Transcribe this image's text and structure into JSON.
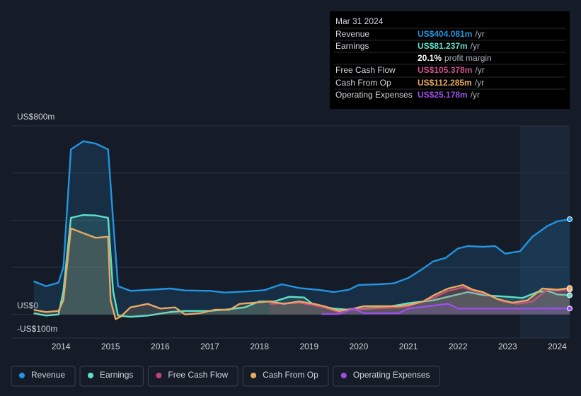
{
  "chart_data": {
    "type": "line",
    "ylim": [
      -100,
      800
    ],
    "yticks": [
      {
        "value": 800,
        "label": "US$800m"
      },
      {
        "value": 0,
        "label": "US$0"
      },
      {
        "value": -100,
        "label": "-US$100m"
      }
    ],
    "ygrid": [
      -100,
      0,
      200,
      400,
      600,
      800
    ],
    "xlim": [
      2013.0,
      2024.25
    ],
    "xticks": [
      2014,
      2015,
      2016,
      2017,
      2018,
      2019,
      2020,
      2021,
      2022,
      2023,
      2024
    ],
    "series": [
      {
        "name": "Revenue",
        "color": "#2394df",
        "x": [
          2013.45,
          2013.7,
          2013.95,
          2014.05,
          2014.2,
          2014.45,
          2014.7,
          2014.95,
          2015.05,
          2015.15,
          2015.4,
          2015.75,
          2016.2,
          2016.5,
          2017.0,
          2017.3,
          2017.7,
          2018.1,
          2018.45,
          2018.8,
          2019.2,
          2019.5,
          2019.8,
          2020.0,
          2020.4,
          2020.7,
          2021.0,
          2021.3,
          2021.5,
          2021.75,
          2022.0,
          2022.2,
          2022.5,
          2022.75,
          2022.95,
          2023.25,
          2023.5,
          2023.8,
          2024.0,
          2024.25
        ],
        "values": [
          141,
          120,
          135,
          200,
          700,
          735,
          725,
          700,
          400,
          120,
          100,
          104,
          110,
          102,
          100,
          93,
          97,
          103,
          128,
          112,
          104,
          95,
          105,
          125,
          128,
          132,
          155,
          195,
          225,
          240,
          280,
          290,
          287,
          290,
          258,
          268,
          330,
          375,
          395,
          404.081
        ]
      },
      {
        "name": "Earnings",
        "color": "#5ee0c7",
        "x": [
          2013.45,
          2013.7,
          2013.95,
          2014.05,
          2014.2,
          2014.45,
          2014.7,
          2014.95,
          2015.05,
          2015.15,
          2015.4,
          2015.75,
          2016.2,
          2016.5,
          2017.0,
          2017.3,
          2017.7,
          2018.0,
          2018.3,
          2018.6,
          2018.9,
          2019.1,
          2019.5,
          2019.8,
          2020.1,
          2020.5,
          2020.8,
          2021.0,
          2021.5,
          2021.9,
          2022.2,
          2022.5,
          2022.8,
          2023.0,
          2023.3,
          2023.6,
          2023.8,
          2024.0,
          2024.25
        ],
        "values": [
          5,
          -5,
          0,
          100,
          410,
          422,
          420,
          410,
          100,
          -5,
          -10,
          -5,
          10,
          15,
          15,
          20,
          30,
          55,
          55,
          75,
          72,
          40,
          25,
          20,
          25,
          30,
          40,
          48,
          60,
          80,
          95,
          82,
          78,
          75,
          70,
          95,
          100,
          85,
          81.237
        ]
      },
      {
        "name": "Free Cash Flow",
        "color": "#c0427a",
        "x": [
          2018.2,
          2018.8,
          2019.3,
          2019.6,
          2019.9,
          2020.3,
          2020.8,
          2021.0,
          2021.5,
          2021.8,
          2022.1,
          2022.3,
          2022.6,
          2022.9,
          2023.2,
          2023.5,
          2023.8,
          2024.0,
          2024.25
        ],
        "values": [
          45,
          50,
          30,
          10,
          20,
          25,
          30,
          35,
          70,
          100,
          115,
          100,
          85,
          55,
          45,
          55,
          105,
          100,
          105.378
        ]
      },
      {
        "name": "Cash From Op",
        "color": "#e8a964",
        "x": [
          2013.45,
          2013.7,
          2013.95,
          2014.05,
          2014.2,
          2014.45,
          2014.7,
          2014.95,
          2015.0,
          2015.1,
          2015.2,
          2015.4,
          2015.75,
          2016.0,
          2016.3,
          2016.5,
          2016.8,
          2017.1,
          2017.4,
          2017.6,
          2017.9,
          2018.2,
          2018.5,
          2018.8,
          2019.1,
          2019.3,
          2019.6,
          2019.9,
          2020.1,
          2020.5,
          2020.8,
          2021.0,
          2021.3,
          2021.5,
          2021.8,
          2022.1,
          2022.3,
          2022.5,
          2022.8,
          2023.1,
          2023.4,
          2023.7,
          2024.0,
          2024.25
        ],
        "values": [
          20,
          10,
          15,
          60,
          365,
          345,
          325,
          330,
          60,
          -20,
          -10,
          30,
          45,
          25,
          30,
          0,
          5,
          20,
          20,
          45,
          50,
          55,
          45,
          55,
          45,
          35,
          15,
          25,
          35,
          35,
          35,
          40,
          55,
          80,
          110,
          125,
          105,
          95,
          65,
          50,
          60,
          110,
          105,
          112.285
        ]
      },
      {
        "name": "Operating Expenses",
        "color": "#9b4fe8",
        "x": [
          2019.25,
          2019.6,
          2019.9,
          2020.1,
          2020.5,
          2020.8,
          2021.0,
          2021.4,
          2021.8,
          2022.0,
          2022.5,
          2023.0,
          2023.5,
          2024.0,
          2024.25
        ],
        "values": [
          2,
          2,
          25,
          5,
          5,
          5,
          25,
          35,
          45,
          25,
          25,
          25,
          25,
          26,
          25.178
        ]
      }
    ]
  },
  "tooltip": {
    "date": "Mar 31 2024",
    "rows": [
      {
        "label": "Revenue",
        "value": "US$404.081m",
        "unit": "/yr",
        "color": "#2394df"
      },
      {
        "label": "Earnings",
        "value": "US$81.237m",
        "unit": "/yr",
        "color": "#5ee0c7"
      },
      {
        "value": "20.1%",
        "unit": "profit margin",
        "color": "#ffffff"
      },
      {
        "label": "Free Cash Flow",
        "value": "US$105.378m",
        "unit": "/yr",
        "color": "#d0508a"
      },
      {
        "label": "Cash From Op",
        "value": "US$112.285m",
        "unit": "/yr",
        "color": "#e8a964"
      },
      {
        "label": "Operating Expenses",
        "value": "US$25.178m",
        "unit": "/yr",
        "color": "#9b4fe8"
      }
    ]
  }
}
